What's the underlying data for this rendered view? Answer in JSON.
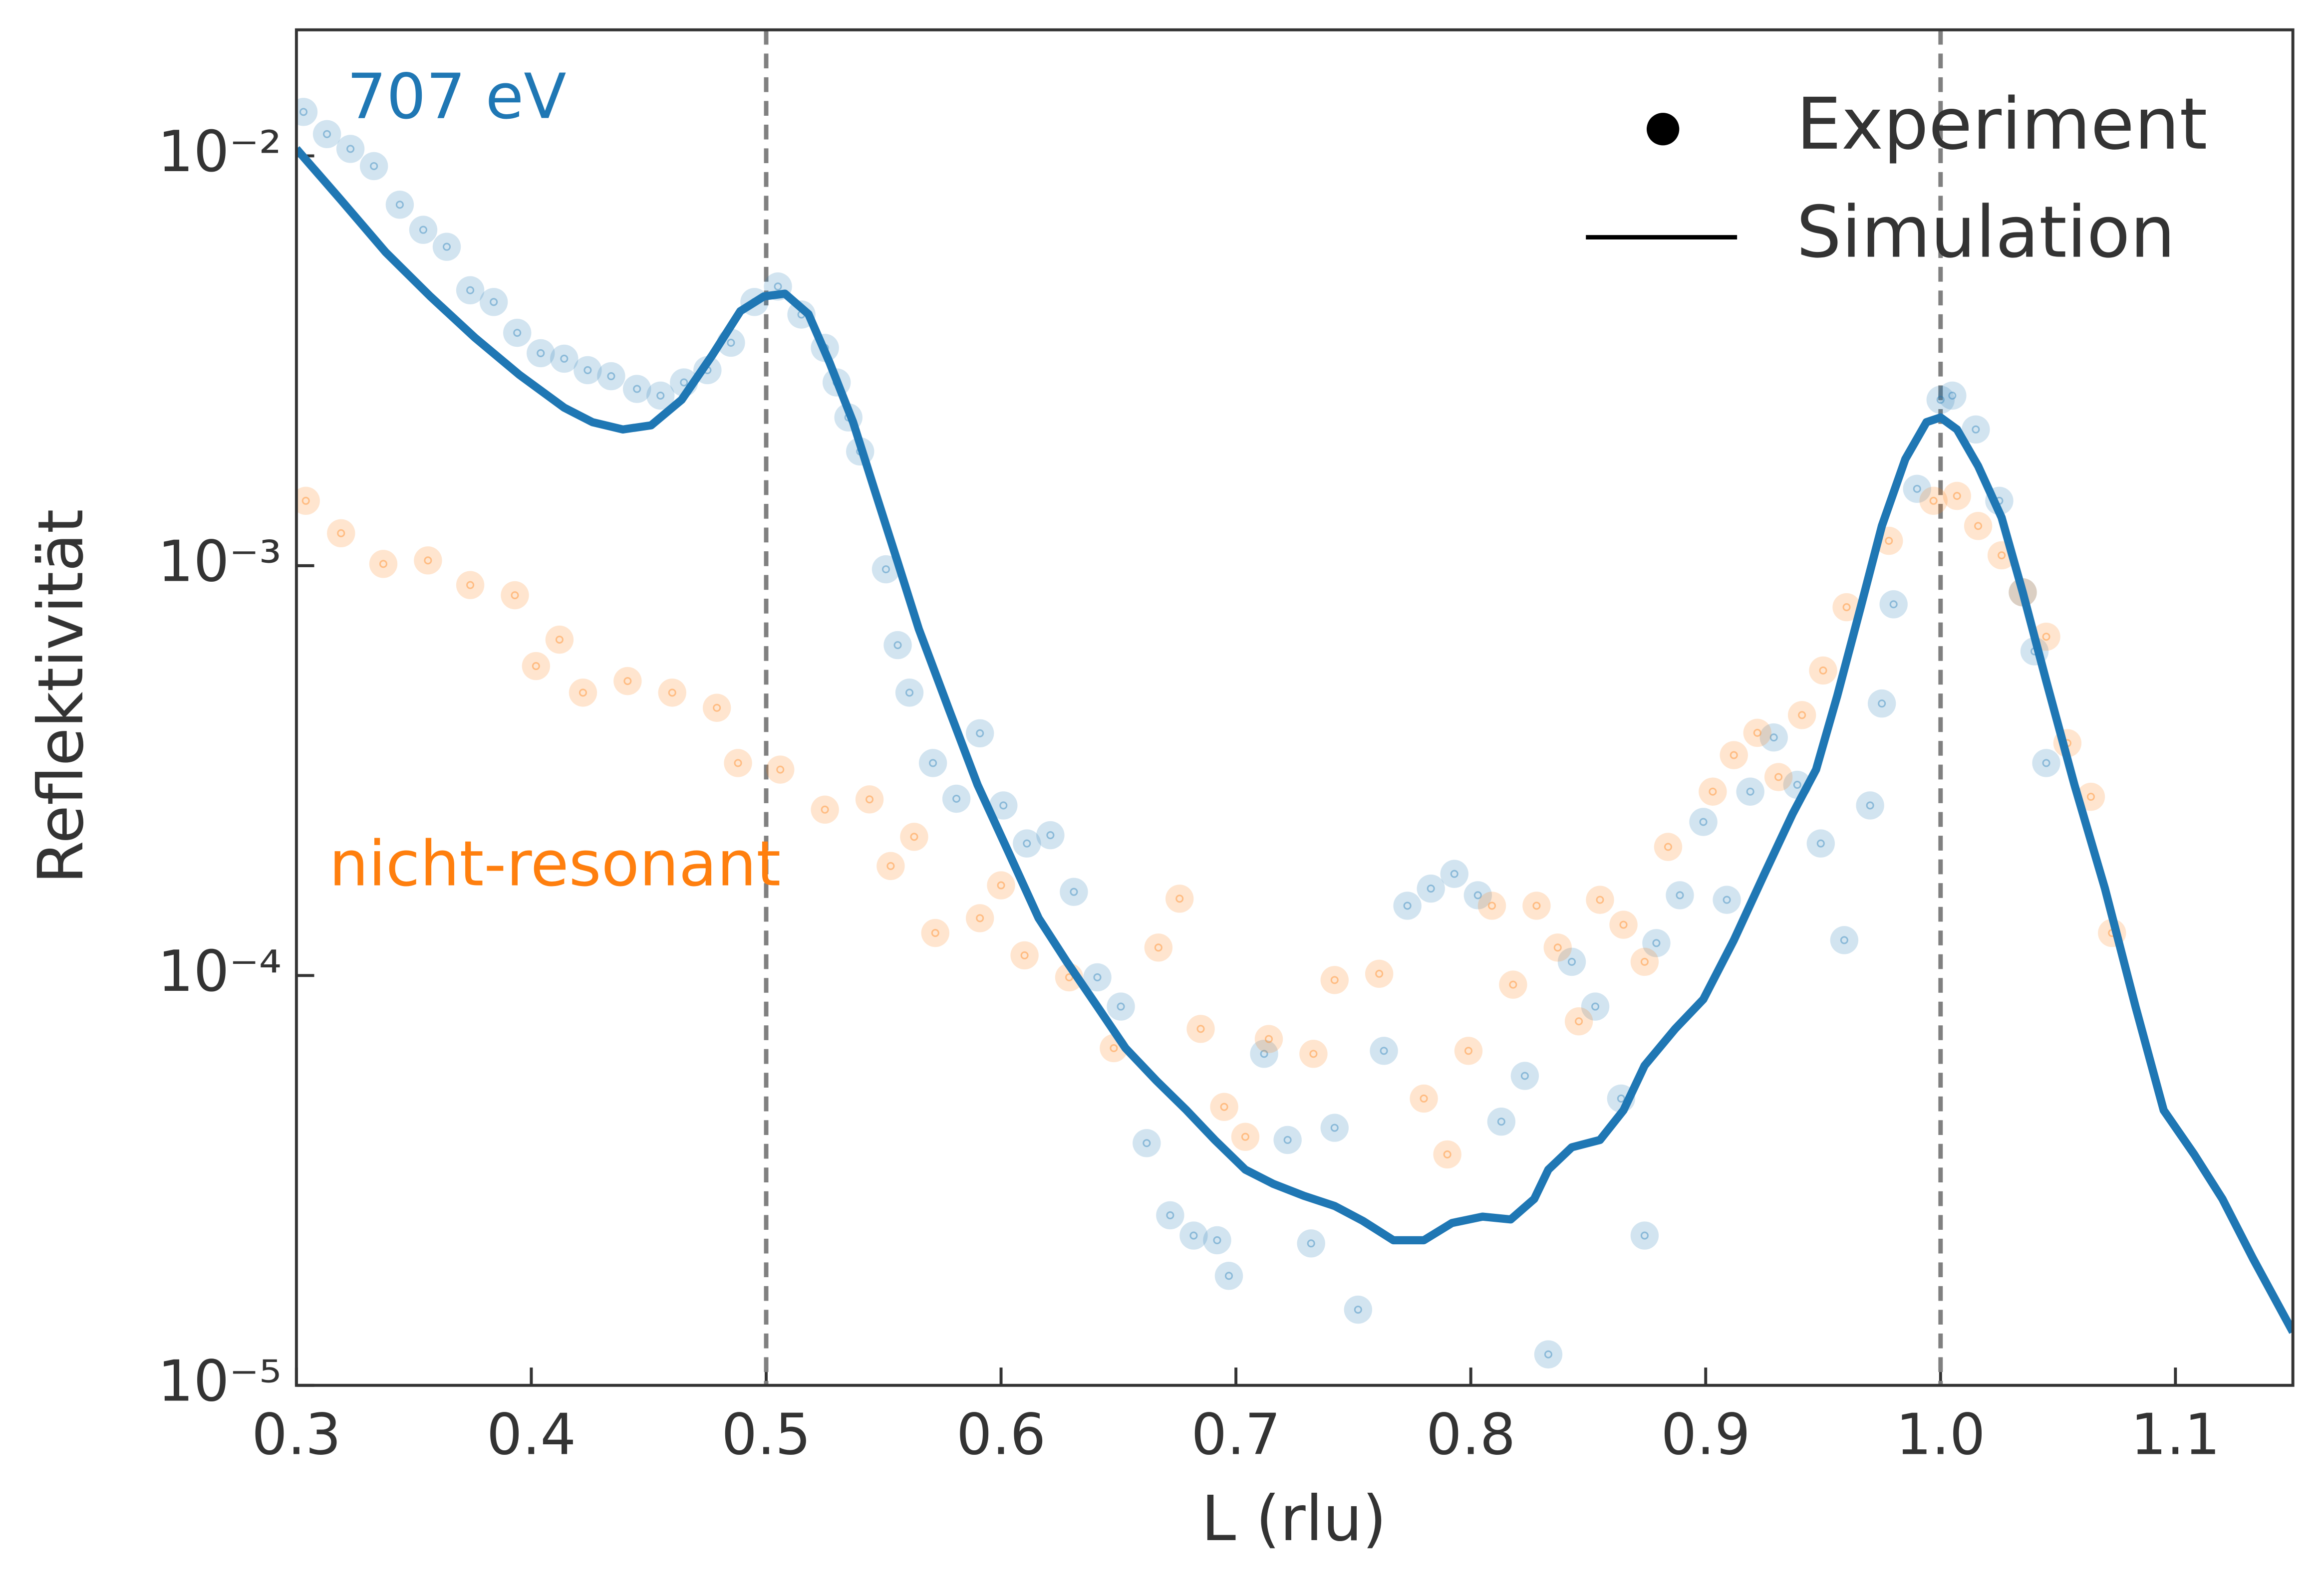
{
  "chart_data": {
    "type": "scatter",
    "xlabel": "L (rlu)",
    "ylabel": "Reflektivität",
    "xlim": [
      0.3,
      1.15
    ],
    "xticks": [
      0.3,
      0.4,
      0.5,
      0.6,
      0.7,
      0.8,
      0.9,
      {
        "value": 1,
        "label": "1.0"
      },
      1.1
    ],
    "ylim": [
      1e-05,
      0.0203
    ],
    "yticks": [
      {
        "value": 1e-05,
        "label": "10⁻⁵"
      },
      {
        "value": 0.0001,
        "label": "10⁻⁴"
      },
      {
        "value": 0.001,
        "label": "10⁻³"
      },
      {
        "value": 0.01,
        "label": "10⁻²"
      }
    ],
    "log_y": true,
    "vlines": [
      0.5,
      1
    ],
    "legend": [
      "Experiment",
      "Simulation"
    ],
    "legend_position": "upper right",
    "annotations": [
      {
        "text": "707 eV",
        "color": "#1f77b4"
      },
      {
        "text": "nicht-resonant",
        "color": "#ff7f0e"
      }
    ],
    "series": [
      {
        "type": "scatter",
        "color": "#1f77b4",
        "x": [
          0.303,
          0.313,
          0.323,
          0.333,
          0.344,
          0.354,
          0.364,
          0.374,
          0.384,
          0.394,
          0.404,
          0.414,
          0.424,
          0.434,
          0.445,
          0.455,
          0.465,
          0.475,
          0.485,
          0.495,
          0.505,
          0.515,
          0.525,
          0.53,
          0.535,
          0.54,
          0.551,
          0.556,
          0.561,
          0.571,
          0.581,
          0.591,
          0.601,
          0.611,
          0.621,
          0.631,
          0.641,
          0.651,
          0.662,
          0.672,
          0.682,
          0.692,
          0.697,
          0.712,
          0.722,
          0.732,
          0.742,
          0.752,
          0.763,
          0.773,
          0.783,
          0.793,
          0.803,
          0.813,
          0.823,
          0.833,
          0.843,
          0.853,
          0.864,
          0.874,
          0.879,
          0.889,
          0.899,
          0.909,
          0.919,
          0.929,
          0.939,
          0.949,
          0.959,
          0.97,
          0.975,
          0.98,
          0.99,
          1.0,
          1.005,
          1.015,
          1.025,
          1.035,
          1.04,
          1.045
        ],
        "values": [
          0.0128,
          0.0113,
          0.0104,
          0.00944,
          0.0076,
          0.0066,
          0.006,
          0.0047,
          0.0044,
          0.0037,
          0.0033,
          0.0032,
          0.003,
          0.0029,
          0.0027,
          0.0026,
          0.0028,
          0.003,
          0.0035,
          0.0044,
          0.0048,
          0.0041,
          0.0034,
          0.0028,
          0.0023,
          0.0019,
          0.00098,
          0.00064,
          0.00049,
          0.00033,
          0.00027,
          0.00039,
          0.00026,
          0.00021,
          0.00022,
          0.00016,
          9.9e-05,
          8.4e-05,
          3.9e-05,
          2.6e-05,
          2.32e-05,
          2.26e-05,
          1.85e-05,
          6.44e-05,
          3.97e-05,
          2.22e-05,
          4.25e-05,
          1.53e-05,
          6.55e-05,
          0.000148,
          0.000163,
          0.000177,
          0.000157,
          4.4e-05,
          5.69e-05,
          1.19e-05,
          0.000108,
          8.4e-05,
          5.01e-05,
          2.32e-05,
          0.00012,
          0.000157,
          0.000237,
          0.000153,
          0.000281,
          0.000381,
          0.000292,
          0.00021,
          0.000122,
          0.00026,
          0.000461,
          0.000805,
          0.00154,
          0.00254,
          0.0026,
          0.00215,
          0.00144,
          0.000861,
          0.000618,
          0.00033
        ]
      },
      {
        "type": "scatter",
        "color": "#ff7f0e",
        "x": [
          0.304,
          0.319,
          0.337,
          0.356,
          0.374,
          0.393,
          0.402,
          0.412,
          0.422,
          0.441,
          0.46,
          0.479,
          0.488,
          0.506,
          0.525,
          0.544,
          0.553,
          0.563,
          0.572,
          0.591,
          0.6,
          0.61,
          0.629,
          0.648,
          0.667,
          0.676,
          0.685,
          0.695,
          0.704,
          0.714,
          0.733,
          0.742,
          0.761,
          0.78,
          0.79,
          0.799,
          0.809,
          0.818,
          0.828,
          0.837,
          0.846,
          0.855,
          0.865,
          0.874,
          0.884,
          0.903,
          0.912,
          0.922,
          0.931,
          0.941,
          0.95,
          0.96,
          0.978,
          0.997,
          1.007,
          1.016,
          1.026,
          1.035,
          1.045,
          1.054,
          1.064,
          1.073
        ],
        "values": [
          0.00144,
          0.0012,
          0.00101,
          0.00103,
          0.000897,
          0.000847,
          0.000569,
          0.00066,
          0.00049,
          0.000523,
          0.00049,
          0.00045,
          0.00033,
          0.000318,
          0.000254,
          0.000269,
          0.000185,
          0.000218,
          0.000127,
          0.000138,
          0.000166,
          0.000112,
          9.9e-05,
          6.65e-05,
          0.000117,
          0.000154,
          7.41e-05,
          4.78e-05,
          4.04e-05,
          7e-05,
          6.44e-05,
          9.75e-05,
          0.000101,
          5.01e-05,
          3.66e-05,
          6.55e-05,
          0.000148,
          9.5e-05,
          0.000148,
          0.000117,
          7.73e-05,
          0.000153,
          0.000133,
          0.000108,
          0.000206,
          0.000281,
          0.000345,
          0.000391,
          0.000305,
          0.000432,
          0.000555,
          0.000792,
          0.00115,
          0.00144,
          0.00148,
          0.00125,
          0.00106,
          0.000861,
          0.000671,
          0.000369,
          0.000273,
          0.000127
        ]
      },
      {
        "type": "line",
        "color": "#1f77b4",
        "x": [
          0.3,
          0.319,
          0.338,
          0.357,
          0.376,
          0.395,
          0.414,
          0.426,
          0.439,
          0.451,
          0.464,
          0.477,
          0.489,
          0.499,
          0.508,
          0.518,
          0.527,
          0.537,
          0.546,
          0.556,
          0.565,
          0.578,
          0.59,
          0.603,
          0.616,
          0.628,
          0.641,
          0.653,
          0.666,
          0.679,
          0.691,
          0.704,
          0.716,
          0.729,
          0.742,
          0.754,
          0.767,
          0.78,
          0.792,
          0.805,
          0.817,
          0.827,
          0.833,
          0.843,
          0.855,
          0.865,
          0.874,
          0.887,
          0.899,
          0.912,
          0.925,
          0.937,
          0.947,
          0.956,
          0.966,
          0.975,
          0.985,
          0.994,
          1.0,
          1.007,
          1.016,
          1.026,
          1.035,
          1.045,
          1.057,
          1.07,
          1.083,
          1.095,
          1.108,
          1.12,
          1.133,
          1.15
        ],
        "values": [
          0.0104,
          0.0078,
          0.00582,
          0.00454,
          0.0036,
          0.00292,
          0.00243,
          0.00224,
          0.00215,
          0.0022,
          0.00254,
          0.00326,
          0.00418,
          0.00454,
          0.00461,
          0.00411,
          0.00313,
          0.00224,
          0.00154,
          0.00102,
          0.0007,
          0.000443,
          0.000292,
          0.000201,
          0.000138,
          0.000108,
          8.4e-05,
          6.65e-05,
          5.55e-05,
          4.69e-05,
          3.97e-05,
          3.36e-05,
          3.1e-05,
          2.9e-05,
          2.74e-05,
          2.52e-05,
          2.26e-05,
          2.26e-05,
          2.49e-05,
          2.58e-05,
          2.54e-05,
          2.85e-05,
          3.36e-05,
          3.81e-05,
          3.97e-05,
          4.69e-05,
          6.03e-05,
          7.41e-05,
          8.75e-05,
          0.000122,
          0.000177,
          0.000248,
          0.000318,
          0.000481,
          0.000792,
          0.00125,
          0.00182,
          0.00224,
          0.0023,
          0.00215,
          0.00175,
          0.00131,
          0.000861,
          0.000523,
          0.000292,
          0.000163,
          8.4e-05,
          4.69e-05,
          3.66e-05,
          2.85e-05,
          2.04e-05,
          1.35e-05
        ]
      }
    ]
  }
}
